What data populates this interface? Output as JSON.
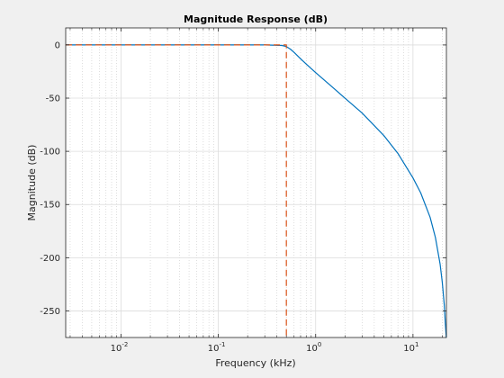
{
  "chart_data": {
    "type": "line",
    "title": "Magnitude Response (dB)",
    "xlabel": "Frequency (kHz)",
    "ylabel": "Magnitude (dB)",
    "x_scale": "log",
    "xlim": [
      0.0027,
      22.05
    ],
    "ylim": [
      -275,
      16
    ],
    "x_ticks": [
      {
        "value": 0.01,
        "base": "10",
        "exp": "-2"
      },
      {
        "value": 0.1,
        "base": "10",
        "exp": "-1"
      },
      {
        "value": 1,
        "base": "10",
        "exp": "0"
      },
      {
        "value": 10,
        "base": "10",
        "exp": "1"
      }
    ],
    "y_ticks": [
      0,
      -50,
      -100,
      -150,
      -200,
      -250
    ],
    "y_tick_labels": [
      "0",
      "-50",
      "-100",
      "-150",
      "-200",
      "-250"
    ],
    "grid": true,
    "minor_grid": true,
    "series": [
      {
        "color": "#0072bd",
        "style": "solid",
        "x": [
          0.0027,
          0.01,
          0.1,
          0.3,
          0.45,
          0.5,
          0.55,
          0.6,
          0.7,
          0.8,
          1.0,
          1.5,
          2.0,
          3.0,
          5.0,
          7.0,
          10.0,
          12.0,
          15.0,
          17.0,
          19.0,
          20.0,
          21.0,
          21.5,
          22.0,
          22.05
        ],
        "y": [
          0,
          0,
          0,
          0,
          -0.5,
          -1.5,
          -4,
          -7,
          -13,
          -18,
          -26,
          -40,
          -50,
          -64,
          -85,
          -102,
          -125,
          -139,
          -162,
          -181,
          -206,
          -223,
          -245,
          -262,
          -275,
          -275
        ]
      },
      {
        "color": "#d95319",
        "style": "dashed",
        "x": [
          0.0027,
          0.5,
          0.5
        ],
        "y": [
          0,
          0,
          -275
        ]
      }
    ]
  }
}
